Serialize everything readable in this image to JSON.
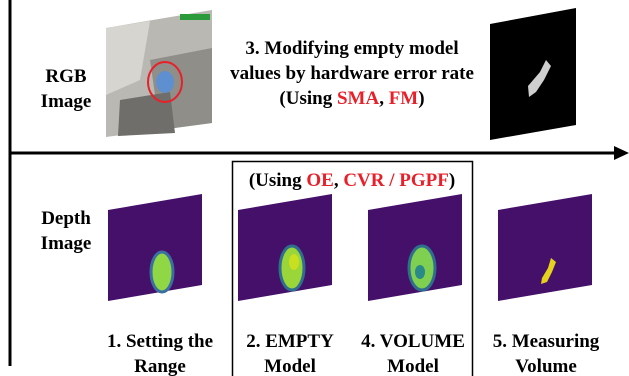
{
  "rows": [
    {
      "label": [
        "RGB",
        "Image"
      ]
    },
    {
      "label": [
        "Depth",
        "Image"
      ]
    }
  ],
  "step3": {
    "lines": [
      "3. Modifying empty model",
      "values by hardware error rate"
    ],
    "methods": [
      "(Using ",
      "SMA",
      ", ",
      "FM",
      ")"
    ]
  },
  "box_methods": [
    "(Using ",
    "OE",
    ", ",
    "CVR / PGPF",
    ")"
  ],
  "steps": [
    [
      "1. Setting the",
      "Range"
    ],
    [
      "2. EMPTY",
      "Model"
    ],
    [
      "4. VOLUME",
      "Model"
    ],
    [
      "5. Measuring",
      "Volume"
    ]
  ]
}
